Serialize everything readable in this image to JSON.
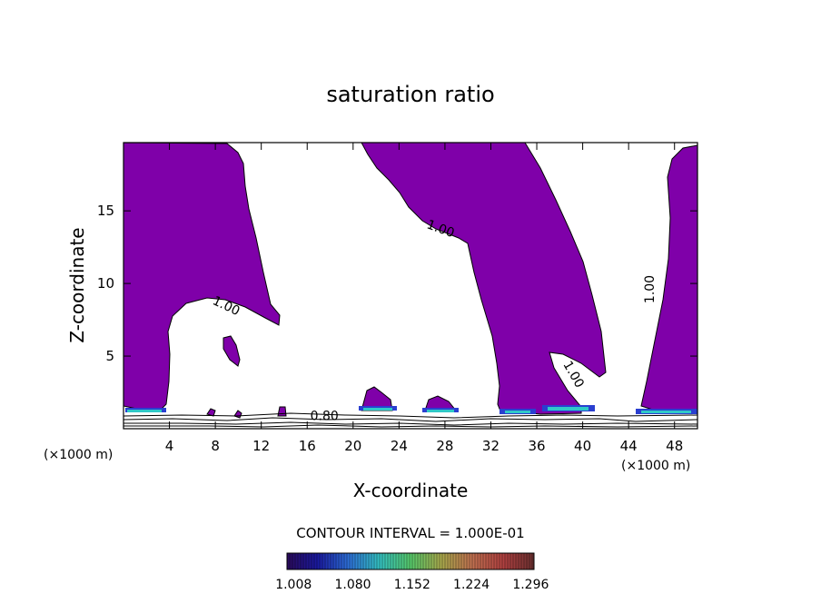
{
  "chart_data": {
    "type": "contour",
    "title": "saturation ratio",
    "xlabel": "X-coordinate",
    "ylabel": "Z-coordinate",
    "x_unit_left": "(×1000 m)",
    "x_unit_right": "(×1000 m)",
    "xlim": [
      0,
      50
    ],
    "ylim": [
      0,
      19.7
    ],
    "x_ticks": [
      4,
      8,
      12,
      16,
      20,
      24,
      28,
      32,
      36,
      40,
      44,
      48
    ],
    "y_ticks": [
      5,
      10,
      15
    ],
    "contour_interval": "CONTOUR INTERVAL = 1.000E-01",
    "fill_color": "#7F00A9",
    "contour_labels": [
      {
        "text": "1.00",
        "x": 8.8,
        "z": 8.2,
        "angle": 25
      },
      {
        "text": "1.00",
        "x": 27.5,
        "z": 13.5,
        "angle": 20
      },
      {
        "text": "1.00",
        "x": 46.2,
        "z": 9.6,
        "angle": -90
      },
      {
        "text": "1.00",
        "x": 38.9,
        "z": 3.6,
        "angle": 60
      },
      {
        "text": "0.80",
        "x": 17.5,
        "z": 0.6,
        "angle": 0
      }
    ],
    "colorbar": {
      "ticks": [
        "1.008",
        "1.080",
        "1.152",
        "1.224",
        "1.296"
      ],
      "range": [
        1.0,
        1.3
      ],
      "stops": [
        "#2a0a5a",
        "#1a1aa0",
        "#2d6fd6",
        "#34c0c0",
        "#56c86a",
        "#a8a84c",
        "#c07050",
        "#b04040",
        "#6a3030"
      ]
    }
  }
}
